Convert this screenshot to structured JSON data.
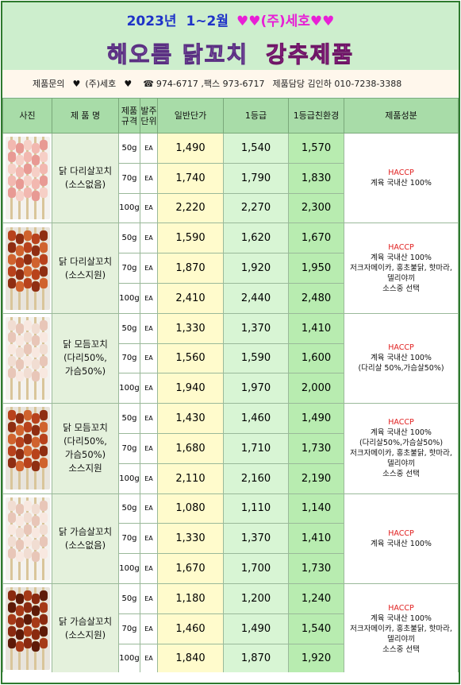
{
  "header": {
    "title_year": "2023년",
    "title_months": "1~2월",
    "title_hearts_left": "♥♥",
    "title_company": "(주)세호",
    "title_hearts_right": "♥♥",
    "subtitle_left": "해오름 닭꼬치",
    "subtitle_right": "강추제품"
  },
  "contact": {
    "inquiry_label": "제품문의",
    "heart": "♥",
    "company": "(주)세호",
    "phone_icon": "☎",
    "phone_fax": "974-6717 ,팩스  973-6717",
    "manager": "제품담당 김인하  010-7238-3388"
  },
  "table": {
    "headers": {
      "photo": "사진",
      "name": "제 품 명",
      "spec_line1": "제품",
      "spec_line2": "규격",
      "unit_line1": "발주",
      "unit_line2": "단위",
      "price_general": "일반단가",
      "price_grade1": "1등급",
      "price_grade1_eco": "1등급친환경",
      "composition": "제품성분"
    },
    "products": [
      {
        "name_lines": [
          "닭 다리살꼬치",
          "(소스없음)"
        ],
        "photo_tone": "raw",
        "composition": {
          "haccp": "HACCP",
          "lines": [
            "계육 국내산 100%"
          ]
        },
        "rows": [
          {
            "spec": "50g",
            "unit": "EA",
            "general": "1,490",
            "grade1": "1,540",
            "eco": "1,570"
          },
          {
            "spec": "70g",
            "unit": "EA",
            "general": "1,740",
            "grade1": "1,790",
            "eco": "1,830"
          },
          {
            "spec": "100g",
            "unit": "EA",
            "general": "2,220",
            "grade1": "2,270",
            "eco": "2,300"
          }
        ]
      },
      {
        "name_lines": [
          "닭 다리살꼬치",
          "(소스지원)"
        ],
        "photo_tone": "sauce",
        "composition": {
          "haccp": "HACCP",
          "lines": [
            "계육 국내산 100%",
            "저크자메이카, 홍초불닭, 핫마라,",
            "델리야끼",
            "소스중 선택"
          ]
        },
        "rows": [
          {
            "spec": "50g",
            "unit": "EA",
            "general": "1,590",
            "grade1": "1,620",
            "eco": "1,670"
          },
          {
            "spec": "70g",
            "unit": "EA",
            "general": "1,870",
            "grade1": "1,920",
            "eco": "1,950"
          },
          {
            "spec": "100g",
            "unit": "EA",
            "general": "2,410",
            "grade1": "2,440",
            "eco": "2,480"
          }
        ]
      },
      {
        "name_lines": [
          "닭 모듬꼬치",
          "(다리50%,",
          "가슴50%)"
        ],
        "photo_tone": "raw-light",
        "composition": {
          "haccp": "HACCP",
          "lines": [
            "계육 국내산 100%",
            "(다리살 50%,가슴살50%)"
          ]
        },
        "rows": [
          {
            "spec": "50g",
            "unit": "EA",
            "general": "1,330",
            "grade1": "1,370",
            "eco": "1,410"
          },
          {
            "spec": "70g",
            "unit": "EA",
            "general": "1,560",
            "grade1": "1,590",
            "eco": "1,600"
          },
          {
            "spec": "100g",
            "unit": "EA",
            "general": "1,940",
            "grade1": "1,970",
            "eco": "2,000"
          }
        ]
      },
      {
        "name_lines": [
          "닭 모듬꼬치",
          "(다리50%,",
          "가슴50%)",
          "소스지원"
        ],
        "photo_tone": "sauce",
        "composition": {
          "haccp": "HACCP",
          "lines": [
            "계육 국내산 100%",
            "(다리살50%,가슴살50%)",
            "저크자메이카, 홍초불닭, 핫마라,",
            "델리야끼",
            "소스중 선택"
          ]
        },
        "rows": [
          {
            "spec": "50g",
            "unit": "EA",
            "general": "1,430",
            "grade1": "1,460",
            "eco": "1,490"
          },
          {
            "spec": "70g",
            "unit": "EA",
            "general": "1,680",
            "grade1": "1,710",
            "eco": "1,730"
          },
          {
            "spec": "100g",
            "unit": "EA",
            "general": "2,110",
            "grade1": "2,160",
            "eco": "2,190"
          }
        ]
      },
      {
        "name_lines": [
          "닭 가슴살꼬치",
          "(소스없음)"
        ],
        "photo_tone": "raw-light",
        "composition": {
          "haccp": "HACCP",
          "lines": [
            "계육 국내산 100%"
          ]
        },
        "rows": [
          {
            "spec": "50g",
            "unit": "EA",
            "general": "1,080",
            "grade1": "1,110",
            "eco": "1,140"
          },
          {
            "spec": "70g",
            "unit": "EA",
            "general": "1,330",
            "grade1": "1,370",
            "eco": "1,410"
          },
          {
            "spec": "100g",
            "unit": "EA",
            "general": "1,670",
            "grade1": "1,700",
            "eco": "1,730"
          }
        ]
      },
      {
        "name_lines": [
          "닭 가슴살꼬치",
          "(소스지원)"
        ],
        "photo_tone": "sauce-dark",
        "composition": {
          "haccp": "HACCP",
          "lines": [
            "계육 국내산 100%",
            "저크자메이카, 홍초불닭, 핫마라,",
            "델리야끼",
            "소스중 선택"
          ]
        },
        "rows": [
          {
            "spec": "50g",
            "unit": "EA",
            "general": "1,180",
            "grade1": "1,200",
            "eco": "1,240"
          },
          {
            "spec": "70g",
            "unit": "EA",
            "general": "1,460",
            "grade1": "1,490",
            "eco": "1,540"
          },
          {
            "spec": "100g",
            "unit": "EA",
            "general": "1,840",
            "grade1": "1,870",
            "eco": "1,920"
          }
        ]
      }
    ]
  },
  "colors": {
    "border": "#2e7a2e",
    "header_bg": "#cdeecd",
    "title_blue": "#1f33c8",
    "title_pink": "#e81fd6",
    "haccp_red": "#e02020",
    "col_general_bg": "#fffbcc",
    "col_grade1_bg": "#d8f5d4",
    "col_eco_bg": "#b8ecb0",
    "name_bg": "#e4f1dc",
    "table_header_bg": "#a8dca8"
  },
  "icons": {
    "heart": "heart-icon",
    "phone": "phone-icon",
    "photo": "chicken-skewer-photo"
  }
}
